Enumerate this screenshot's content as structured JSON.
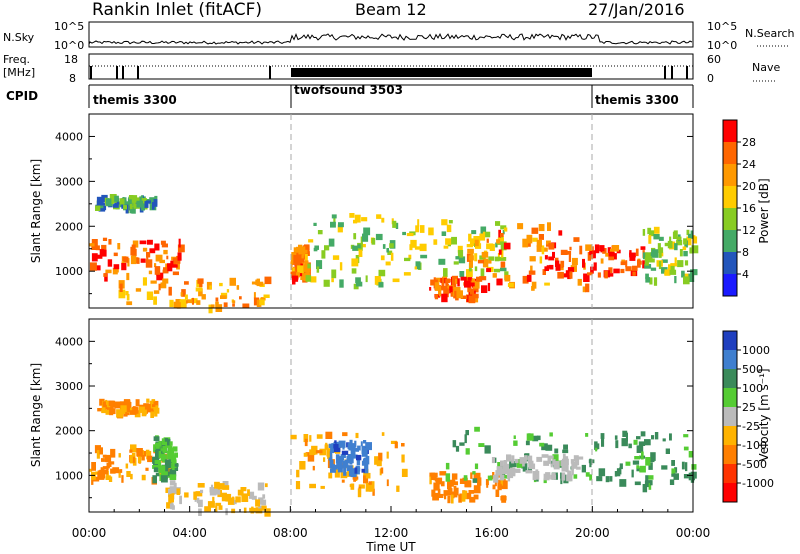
{
  "header": {
    "title": "Rankin Inlet (fitACF)",
    "beam": "Beam 12",
    "date": "27/Jan/2016"
  },
  "top_panels": {
    "nsky_label": "N.Sky",
    "nsky_ticks": [
      "10^5",
      "10^0"
    ],
    "nsearch_label": "N.Search",
    "nsearch_ticks": [
      "10^5",
      "10^0"
    ],
    "freq_label_1": "Freq.",
    "freq_label_2": "[MHz]",
    "freq_ticks": [
      "18",
      "8"
    ],
    "nave_label": "Nave",
    "nave_ticks": [
      "60",
      "0"
    ],
    "cpid_label": "CPID",
    "cpid_segments": [
      {
        "name": "themis 3300",
        "start": 0,
        "end": 8
      },
      {
        "name": "twofsound 3503",
        "start": 8,
        "end": 20
      },
      {
        "name": "themis 3300",
        "start": 20,
        "end": 24
      }
    ]
  },
  "chart_data": [
    {
      "type": "heatmap",
      "title": "",
      "xlabel": "Time UT",
      "ylabel": "Slant Range [km]",
      "x_ticks": [
        "00:00",
        "04:00",
        "08:00",
        "12:00",
        "16:00",
        "20:00",
        "00:00"
      ],
      "xlim_hours": [
        0,
        24
      ],
      "ylim": [
        180,
        4500
      ],
      "y_ticks": [
        1000,
        2000,
        3000,
        4000
      ],
      "colorbar": {
        "label": "Power [dB]",
        "ticks": [
          "28",
          "24",
          "20",
          "16",
          "12",
          "8",
          "4"
        ],
        "colors": [
          "#ff0000",
          "#ff6600",
          "#ff9900",
          "#ffcc00",
          "#88cc22",
          "#44aa66",
          "#2255bb",
          "#1a1aff"
        ]
      },
      "echo_regions": [
        {
          "t0": 0.0,
          "t1": 3.6,
          "r0": 950,
          "r1": 1750,
          "level": 26
        },
        {
          "t0": 0.2,
          "t1": 2.7,
          "r0": 2450,
          "r1": 2720,
          "level": 10
        },
        {
          "t0": 1.0,
          "t1": 7.0,
          "r0": 250,
          "r1": 900,
          "level": 22
        },
        {
          "t0": 8.0,
          "t1": 8.6,
          "r0": 900,
          "r1": 1600,
          "level": 24
        },
        {
          "t0": 8.6,
          "t1": 12.5,
          "r0": 700,
          "r1": 2300,
          "level": 14
        },
        {
          "t0": 12.5,
          "t1": 16.5,
          "r0": 900,
          "r1": 2200,
          "level": 15
        },
        {
          "t0": 13.5,
          "t1": 15.3,
          "r0": 450,
          "r1": 900,
          "level": 26
        },
        {
          "t0": 15.0,
          "t1": 20.0,
          "r0": 650,
          "r1": 2100,
          "level": 24
        },
        {
          "t0": 18.0,
          "t1": 22.0,
          "r0": 900,
          "r1": 1600,
          "level": 28
        },
        {
          "t0": 22.0,
          "t1": 24.0,
          "r0": 800,
          "r1": 2000,
          "level": 14
        }
      ]
    },
    {
      "type": "heatmap",
      "title": "",
      "xlabel": "Time UT",
      "ylabel": "Slant Range [km]",
      "x_ticks": [
        "00:00",
        "04:00",
        "08:00",
        "12:00",
        "16:00",
        "20:00",
        "00:00"
      ],
      "xlim_hours": [
        0,
        24
      ],
      "ylim": [
        180,
        4500
      ],
      "y_ticks": [
        1000,
        2000,
        3000,
        4000
      ],
      "colorbar": {
        "label": "Velocity [m s⁻¹]",
        "ticks": [
          "1000",
          "500",
          "100",
          "25",
          "-25",
          "-100",
          "-500",
          "-1000"
        ],
        "colors": [
          "#1f3fbf",
          "#3f7fcf",
          "#3a8a5a",
          "#55cc33",
          "#bbbbbb",
          "#ffb300",
          "#ff7f00",
          "#ff3300",
          "#ff0000"
        ]
      },
      "echo_regions": [
        {
          "t0": 0.0,
          "t1": 3.2,
          "r0": 950,
          "r1": 1700,
          "level": -120
        },
        {
          "t0": 0.3,
          "t1": 2.7,
          "r0": 2450,
          "r1": 2720,
          "level": -100
        },
        {
          "t0": 2.5,
          "t1": 3.4,
          "r0": 1000,
          "r1": 1900,
          "level": 60
        },
        {
          "t0": 3.0,
          "t1": 7.0,
          "r0": 250,
          "r1": 900,
          "level": -30
        },
        {
          "t0": 8.0,
          "t1": 12.5,
          "r0": 700,
          "r1": 2000,
          "level": -80
        },
        {
          "t0": 9.5,
          "t1": 11.0,
          "r0": 1100,
          "r1": 1800,
          "level": 600
        },
        {
          "t0": 13.5,
          "t1": 16.5,
          "r0": 500,
          "r1": 1100,
          "level": -150
        },
        {
          "t0": 14.0,
          "t1": 20.0,
          "r0": 900,
          "r1": 2100,
          "level": 70
        },
        {
          "t0": 16.0,
          "t1": 19.5,
          "r0": 1000,
          "r1": 1500,
          "level": 0
        },
        {
          "t0": 20.0,
          "t1": 24.0,
          "r0": 800,
          "r1": 2000,
          "level": 80
        }
      ]
    }
  ]
}
